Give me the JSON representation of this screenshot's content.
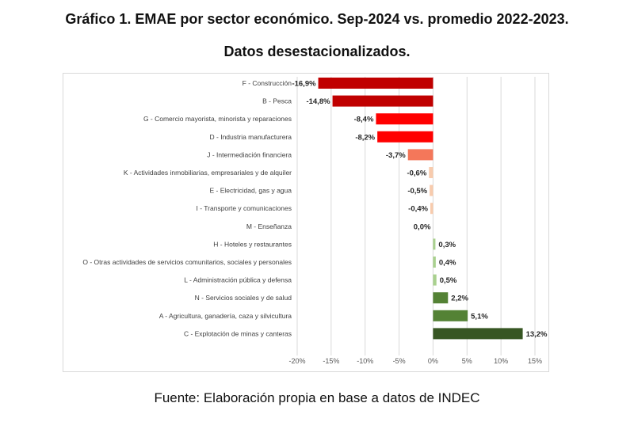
{
  "title_line1": "Gráfico 1. EMAE por sector económico. Sep-2024 vs. promedio 2022-2023.",
  "title_line2": "Datos desestacionalizados.",
  "source": "Fuente: Elaboración propia en base a datos de INDEC",
  "chart_data": {
    "type": "bar",
    "orientation": "horizontal",
    "categories": [
      "F - Construcción",
      "B - Pesca",
      "G - Comercio mayorista, minorista y reparaciones",
      "D - Industria manufacturera",
      "J - Intermediación financiera",
      "K - Actividades inmobiliarias, empresariales y de alquiler",
      "E - Electricidad, gas y agua",
      "I - Transporte y comunicaciones",
      "M - Enseñanza",
      "H - Hoteles y restaurantes",
      "O - Otras actividades de servicios comunitarios, sociales y personales",
      "L - Administración pública y defensa",
      "N - Servicios sociales y de salud",
      "A - Agricultura, ganadería, caza y silvicultura",
      "C - Explotación de minas y canteras"
    ],
    "values": [
      -16.9,
      -14.8,
      -8.4,
      -8.2,
      -3.7,
      -0.6,
      -0.5,
      -0.4,
      0.0,
      0.3,
      0.4,
      0.5,
      2.2,
      5.1,
      13.2
    ],
    "data_labels": [
      "-16,9%",
      "-14,8%",
      "-8,4%",
      "-8,2%",
      "-3,7%",
      "-0,6%",
      "-0,5%",
      "-0,4%",
      "0,0%",
      "0,3%",
      "0,4%",
      "0,5%",
      "2,2%",
      "5,1%",
      "13,2%"
    ],
    "colors": [
      "#c00000",
      "#c00000",
      "#ff0000",
      "#ff0000",
      "#f4775a",
      "#f8cbad",
      "#f8cbad",
      "#f8cbad",
      "#f8cbad",
      "#a9d18e",
      "#a9d18e",
      "#a9d18e",
      "#548235",
      "#548235",
      "#375623"
    ],
    "xlim": [
      -20,
      15
    ],
    "xticks": [
      -20,
      -15,
      -10,
      -5,
      0,
      5,
      10,
      15
    ],
    "xtick_labels": [
      "-20%",
      "-15%",
      "-10%",
      "-5%",
      "0%",
      "5%",
      "10%",
      "15%"
    ],
    "grid": "vertical"
  }
}
